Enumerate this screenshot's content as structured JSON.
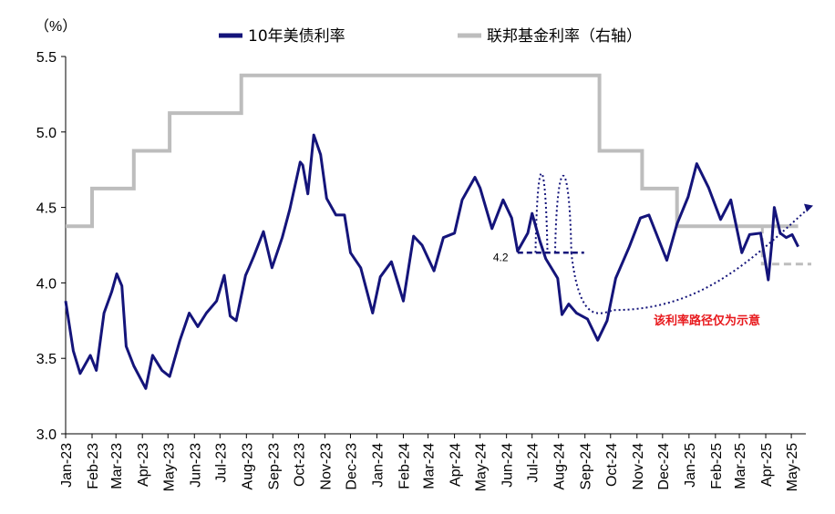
{
  "chart_data": {
    "type": "line",
    "ylabel": "（%）",
    "ylim": [
      3.0,
      5.5
    ],
    "yticks": [
      "3.0",
      "3.5",
      "4.0",
      "4.5",
      "5.0",
      "5.5"
    ],
    "x_tick_labels": [
      "Jan-23",
      "Feb-23",
      "Mar-23",
      "Apr-23",
      "May-23",
      "Jun-23",
      "Jul-23",
      "Aug-23",
      "Sep-23",
      "Oct-23",
      "Nov-23",
      "Dec-23",
      "Jan-24",
      "Feb-24",
      "Mar-24",
      "Apr-24",
      "May-24",
      "Jun-24",
      "Jul-24",
      "Aug-24",
      "Sep-24",
      "Oct-24",
      "Nov-24",
      "Dec-24",
      "Jan-25",
      "Feb-25",
      "Mar-25",
      "Apr-25",
      "May-25"
    ],
    "legend_position": "top",
    "series": [
      {
        "name": "10年美债利率",
        "color": "#14147a",
        "x": [
          "2023-01-01",
          "2023-01-10",
          "2023-01-18",
          "2023-01-30",
          "2023-02-06",
          "2023-02-15",
          "2023-02-24",
          "2023-03-02",
          "2023-03-08",
          "2023-03-13",
          "2023-03-22",
          "2023-04-05",
          "2023-04-13",
          "2023-04-24",
          "2023-05-03",
          "2023-05-15",
          "2023-05-26",
          "2023-06-05",
          "2023-06-15",
          "2023-06-27",
          "2023-07-06",
          "2023-07-13",
          "2023-07-20",
          "2023-07-31",
          "2023-08-04",
          "2023-08-10",
          "2023-08-21",
          "2023-08-31",
          "2023-09-12",
          "2023-09-21",
          "2023-10-03",
          "2023-10-06",
          "2023-10-12",
          "2023-10-19",
          "2023-10-27",
          "2023-11-03",
          "2023-11-14",
          "2023-11-24",
          "2023-12-01",
          "2023-12-13",
          "2023-12-27",
          "2024-01-05",
          "2024-01-18",
          "2024-02-01",
          "2024-02-13",
          "2024-02-23",
          "2024-03-08",
          "2024-03-19",
          "2024-04-01",
          "2024-04-10",
          "2024-04-25",
          "2024-05-01",
          "2024-05-15",
          "2024-05-28",
          "2024-06-07",
          "2024-06-14",
          "2024-06-26",
          "2024-07-01",
          "2024-07-10",
          "2024-07-17",
          "2024-07-31",
          "2024-08-05",
          "2024-08-13",
          "2024-08-22",
          "2024-09-04",
          "2024-09-16",
          "2024-09-27",
          "2024-10-07",
          "2024-10-23",
          "2024-11-05",
          "2024-11-15",
          "2024-12-06",
          "2024-12-18",
          "2024-12-31",
          "2025-01-10",
          "2025-01-24",
          "2025-02-07",
          "2025-02-19",
          "2025-03-04",
          "2025-03-13",
          "2025-03-26",
          "2025-04-04",
          "2025-04-08",
          "2025-04-11",
          "2025-04-18",
          "2025-04-25",
          "2025-05-02",
          "2025-05-09"
        ],
        "values": [
          3.88,
          3.55,
          3.4,
          3.52,
          3.42,
          3.8,
          3.94,
          4.06,
          3.98,
          3.58,
          3.45,
          3.3,
          3.52,
          3.42,
          3.38,
          3.62,
          3.8,
          3.71,
          3.8,
          3.88,
          4.05,
          3.78,
          3.75,
          4.05,
          4.1,
          4.18,
          4.34,
          4.1,
          4.3,
          4.49,
          4.8,
          4.78,
          4.59,
          4.98,
          4.85,
          4.56,
          4.45,
          4.45,
          4.2,
          4.1,
          3.8,
          4.04,
          4.14,
          3.88,
          4.31,
          4.25,
          4.08,
          4.3,
          4.33,
          4.55,
          4.7,
          4.63,
          4.36,
          4.55,
          4.43,
          4.21,
          4.33,
          4.46,
          4.28,
          4.16,
          4.03,
          3.79,
          3.86,
          3.8,
          3.76,
          3.62,
          3.75,
          4.03,
          4.24,
          4.43,
          4.45,
          4.15,
          4.39,
          4.57,
          4.79,
          4.63,
          4.42,
          4.55,
          4.2,
          4.32,
          4.33,
          4.02,
          4.26,
          4.5,
          4.33,
          4.3,
          4.32,
          4.24
        ]
      },
      {
        "name": "联邦基金利率（右轴）",
        "color": "#bdbdbd",
        "x": [
          "2023-01-01",
          "2023-02-01",
          "2023-03-22",
          "2023-05-03",
          "2023-07-26",
          "2024-09-18",
          "2024-11-07",
          "2024-12-18",
          "2025-05-09"
        ],
        "values": [
          4.375,
          4.625,
          4.875,
          5.125,
          5.375,
          4.875,
          4.625,
          4.375,
          4.375
        ]
      }
    ],
    "illustrative": {
      "projection_label": "该利率路径仅为示意",
      "reference_label": "4.2",
      "reference_value": 4.2,
      "projected_policy_rate": 4.125
    }
  }
}
